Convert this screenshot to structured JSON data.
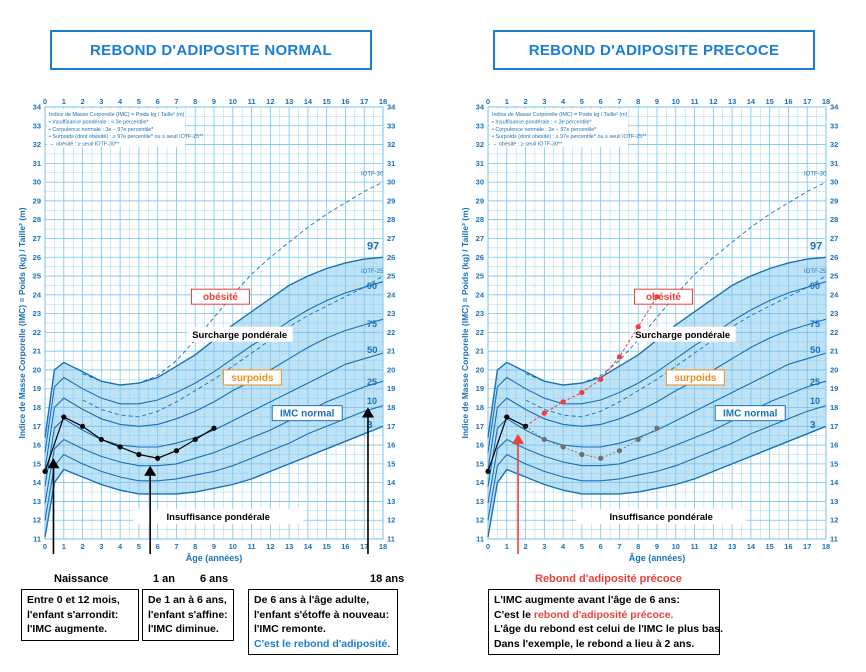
{
  "colors": {
    "accent": "#1a7ed1",
    "band": "#bfe3f6",
    "grid": "#7ac3ec",
    "curve": "#1872b8",
    "red": "#e8423b",
    "orange": "#f08c1e",
    "grey_points": "#6f6f6f"
  },
  "titles": {
    "left": "REBOND D'ADIPOSITE NORMAL",
    "right": "REBOND D'ADIPOSITE PRECOCE"
  },
  "axis": {
    "ylabel": "Indice de Masse Corporelle (IMC) = Poids (kg) / Taille² (m)",
    "xlabel": "Âge (années)",
    "x_ticks": [
      "0",
      "1",
      "2",
      "3",
      "4",
      "5",
      "6",
      "7",
      "8",
      "9",
      "10",
      "11",
      "12",
      "13",
      "14",
      "15",
      "16",
      "17",
      "18"
    ],
    "y_ticks": [
      "11",
      "12",
      "13",
      "14",
      "15",
      "16",
      "17",
      "18",
      "19",
      "20",
      "21",
      "22",
      "23",
      "24",
      "25",
      "26",
      "27",
      "28",
      "29",
      "30",
      "31",
      "32",
      "33",
      "34"
    ]
  },
  "legend": {
    "lines": [
      "Indice de Masse Corporelle (IMC) = Poids kg / Taille² (m)",
      "• Insuffisance pondérale : < 3e percentile*",
      "• Corpulence normale : 3e – 97e percentile*",
      "• Surpoids (dont obésité) : ≥ 97e percentile* ou ≥ seuil IOTF-25**",
      "  → obésité : ≥ seuil IOTF-30**"
    ]
  },
  "zones": {
    "obesite": "obésité",
    "surcharge": "Surcharge pondérale",
    "surpoids": "surpoids",
    "normal": "IMC normal",
    "insuffisance": "Insuffisance pondérale"
  },
  "curve_labels": {
    "iotf30": "IOTF-30",
    "iotf25": "IOTF-25",
    "p97": "97",
    "p90": "90",
    "p75": "75",
    "p50": "50",
    "p25": "25",
    "p10": "10",
    "p3": "3"
  },
  "chart_data": [
    {
      "type": "line",
      "title": "REBOND D'ADIPOSITE NORMAL",
      "xlabel": "Âge (années)",
      "ylabel": "Indice de Masse Corporelle (IMC) = Poids (kg) / Taille² (m)",
      "xlim": [
        0,
        18
      ],
      "ylim": [
        11,
        34
      ],
      "grid": true,
      "series": [
        {
          "x": [
            0,
            1,
            2,
            3,
            4,
            5,
            6,
            7,
            8,
            9
          ],
          "values": [
            14.6,
            17.5,
            17.0,
            16.3,
            15.9,
            15.5,
            15.3,
            15.7,
            16.3,
            16.9
          ]
        }
      ]
    },
    {
      "type": "line",
      "title": "REBOND D'ADIPOSITE PRECOCE",
      "xlabel": "Âge (années)",
      "ylabel": "Indice de Masse Corporelle (IMC) = Poids (kg) / Taille² (m)",
      "xlim": [
        0,
        18
      ],
      "ylim": [
        11,
        34
      ],
      "grid": true,
      "series": [
        {
          "x": [
            0,
            1,
            2,
            3,
            4,
            5,
            6,
            7,
            8,
            9
          ],
          "values": [
            14.6,
            17.5,
            17.0,
            17.7,
            18.3,
            18.8,
            19.5,
            20.7,
            22.3,
            23.9
          ]
        },
        {
          "x": [
            3,
            4,
            5,
            6,
            7,
            8,
            9
          ],
          "values": [
            16.3,
            15.9,
            15.5,
            15.3,
            15.7,
            16.3,
            16.9
          ]
        }
      ]
    }
  ],
  "left_notes": {
    "age_naissance": "Naissance",
    "age_1an": "1 an",
    "age_6ans": "6 ans",
    "age_18ans": "18 ans",
    "box1": [
      "Entre 0 et 12 mois,",
      "l'enfant s'arrondit:",
      "l'IMC augmente."
    ],
    "box2": [
      "De 1 an à 6 ans,",
      "l'enfant s'affine:",
      "l'IMC diminue."
    ],
    "box3": [
      "De 6 ans à l'âge adulte,",
      "l'enfant s'étoffe à nouveau:",
      "l'IMC remonte."
    ],
    "box3_blue": "C'est le rebond d'adiposité."
  },
  "right_notes": {
    "caption": "Rebond d'adiposité précoce",
    "line1": "L'IMC augmente avant l'âge de 6 ans:",
    "line2a": "C'est le ",
    "line2b": "rebond d'adiposité précoce.",
    "line3": "L'âge du rebond est celui de l'IMC le plus bas.",
    "line4": "Dans l'exemple, le rebond a lieu à 2 ans."
  }
}
